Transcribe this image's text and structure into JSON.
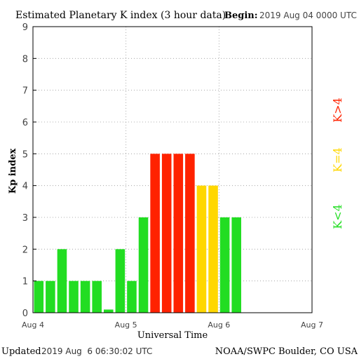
{
  "header": {
    "title": "Estimated Planetary K index (3 hour data)",
    "begin_label": "Begin:",
    "begin_value": "2019 Aug 04 0000 UTC"
  },
  "footer": {
    "updated_label": "Updated",
    "updated_value": "2019 Aug  6 06:30:02 UTC",
    "credit": "NOAA/SWPC Boulder, CO USA"
  },
  "legend": {
    "items": [
      {
        "label": "K>4",
        "color": "#ff2200"
      },
      {
        "label": "K=4",
        "color": "#ffd700"
      },
      {
        "label": "K<4",
        "color": "#22dd22"
      }
    ]
  },
  "chart_data": {
    "type": "bar",
    "title": "Estimated Planetary K index (3 hour data)",
    "xlabel": "Universal Time",
    "ylabel": "Kp index",
    "ylim": [
      0,
      9
    ],
    "yticks": [
      "0",
      "1",
      "2",
      "3",
      "4",
      "5",
      "6",
      "7",
      "8",
      "9"
    ],
    "xticks": [
      "Aug 4",
      "Aug 5",
      "Aug 6",
      "Aug 7"
    ],
    "bin_hours": 3,
    "total_bins": 24,
    "values": [
      1,
      1,
      2,
      1,
      1,
      1,
      0.1,
      2,
      1,
      3,
      5,
      5,
      5,
      5,
      4,
      4,
      3,
      3
    ],
    "colors": {
      "below": "#22dd22",
      "equal": "#ffd700",
      "above": "#ff2200"
    },
    "grid": true
  }
}
